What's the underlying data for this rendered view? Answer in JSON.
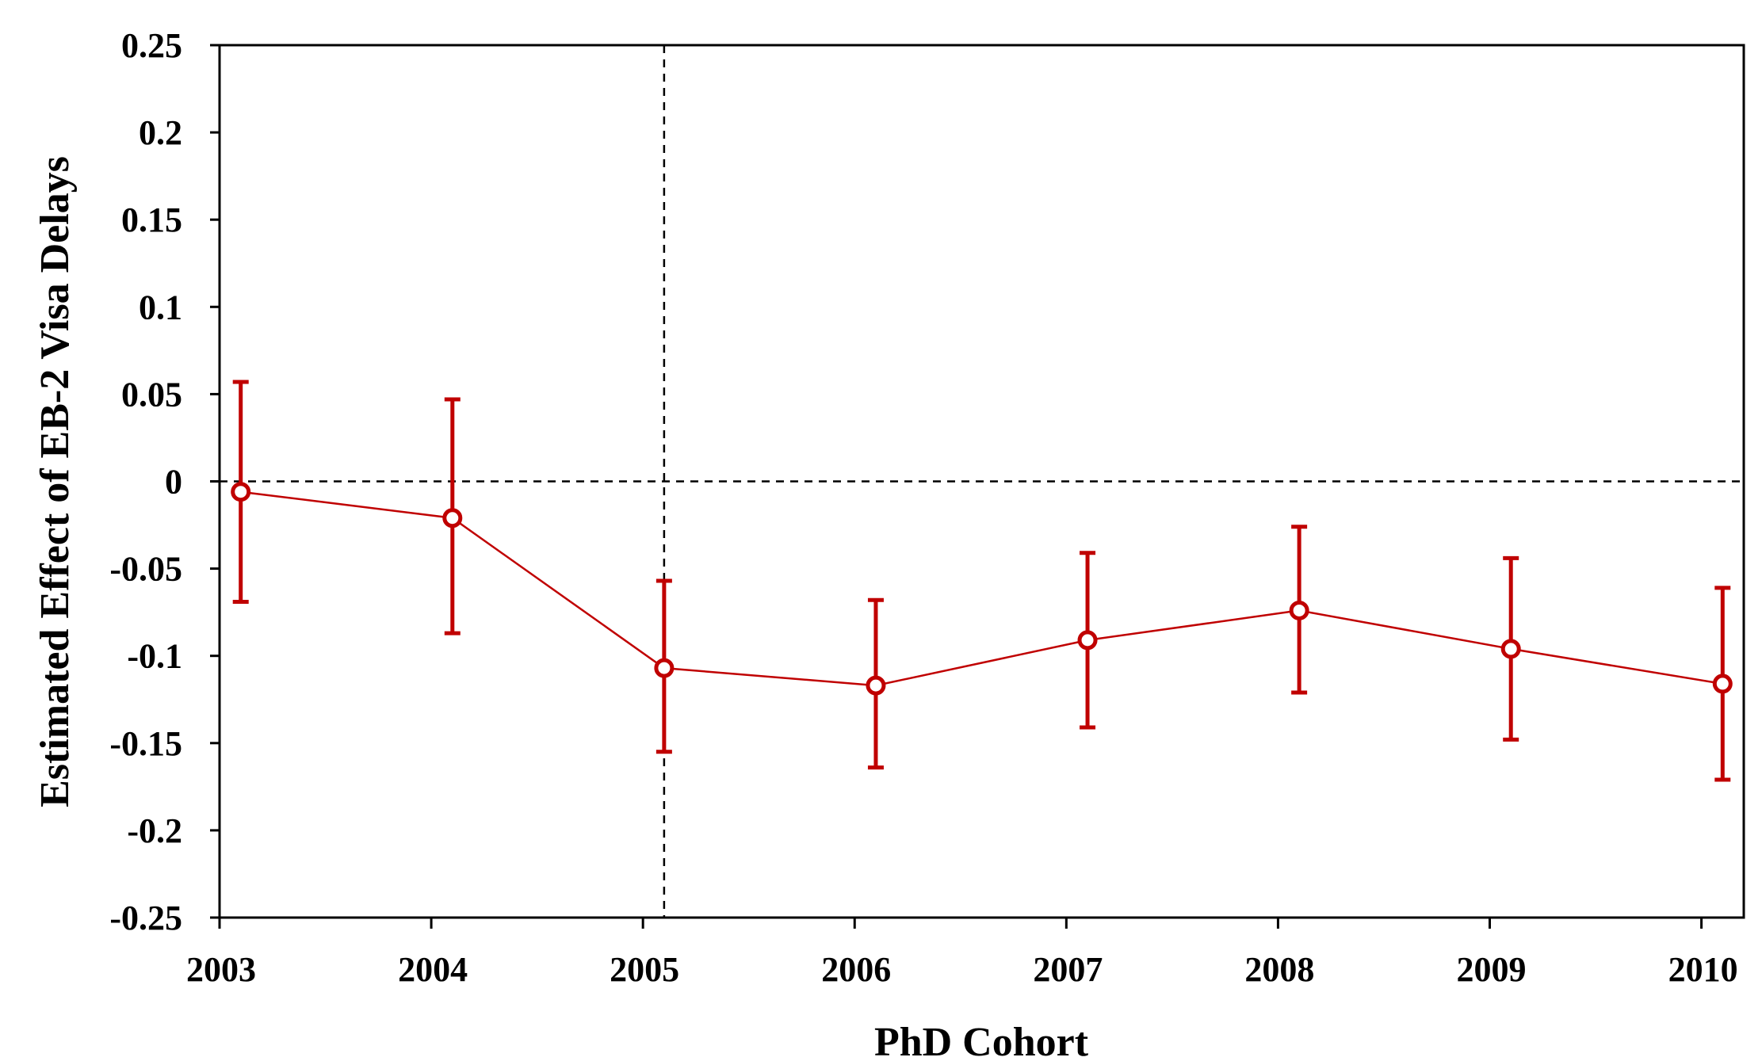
{
  "chart_data": {
    "type": "line",
    "title": "",
    "xlabel": "PhD Cohort",
    "ylabel": "Estimated Effect of EB-2 Visa Delays",
    "x_tick_labels": [
      "2003",
      "2004",
      "2005",
      "2006",
      "2007",
      "2008",
      "2009",
      "2010"
    ],
    "y_tick_labels": [
      "0.25",
      "0.2",
      "0.15",
      "0.1",
      "0.05",
      "0",
      "-0.05",
      "-0.1",
      "-0.15",
      "-0.2",
      "-0.25"
    ],
    "ylim": [
      -0.25,
      0.25
    ],
    "grid": false,
    "legend": "none",
    "reference_lines": [
      {
        "axis": "y",
        "value": 0,
        "style": "dashed"
      },
      {
        "axis": "x",
        "value": 2005.1,
        "style": "dashed"
      }
    ],
    "series": [
      {
        "color": "#c00000",
        "marker": "hollow-circle",
        "x": [
          2003.1,
          2004.1,
          2005.1,
          2006.1,
          2007.1,
          2008.1,
          2009.1,
          2010.1
        ],
        "values": [
          -0.006,
          -0.021,
          -0.107,
          -0.117,
          -0.091,
          -0.074,
          -0.096,
          -0.116
        ],
        "ci_lower": [
          -0.069,
          -0.087,
          -0.155,
          -0.164,
          -0.141,
          -0.121,
          -0.148,
          -0.171
        ],
        "ci_upper": [
          0.057,
          0.047,
          -0.057,
          -0.068,
          -0.041,
          -0.026,
          -0.044,
          -0.061
        ]
      }
    ]
  }
}
